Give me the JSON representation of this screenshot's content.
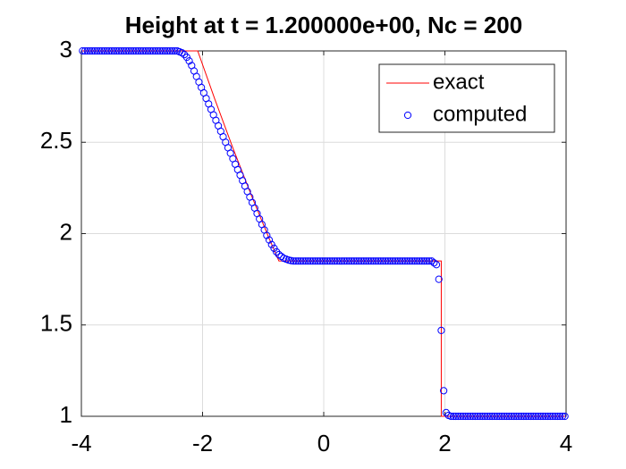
{
  "chart_data": {
    "type": "line",
    "title": "Height at t = 1.200000e+00, Nc = 200",
    "xlim": [
      -4,
      4
    ],
    "ylim": [
      1,
      3
    ],
    "xticks": [
      -4,
      -2,
      0,
      2,
      4
    ],
    "yticks": [
      1,
      1.5,
      2,
      2.5,
      3
    ],
    "grid": true,
    "legend": "northeast",
    "series": [
      {
        "name": "exact",
        "color": "#ff0000",
        "line_style": "-",
        "x": [
          -4,
          -2.08,
          -1.8,
          -1.5,
          -1.2,
          -0.9,
          -0.74,
          1.94,
          1.94,
          4
        ],
        "values": [
          3,
          3,
          2.738,
          2.469,
          2.214,
          1.973,
          1.85,
          1.85,
          1,
          1
        ]
      },
      {
        "name": "computed",
        "color": "#0000ff",
        "marker": "o",
        "x": [
          -3.98,
          -3.94,
          -3.9,
          -3.86,
          -3.82,
          -3.78,
          -3.74,
          -3.7,
          -3.66,
          -3.62,
          -3.58,
          -3.54,
          -3.5,
          -3.46,
          -3.42,
          -3.38,
          -3.34,
          -3.3,
          -3.26,
          -3.22,
          -3.18,
          -3.14,
          -3.1,
          -3.06,
          -3.02,
          -2.98,
          -2.94,
          -2.9,
          -2.86,
          -2.82,
          -2.78,
          -2.74,
          -2.7,
          -2.66,
          -2.62,
          -2.58,
          -2.54,
          -2.5,
          -2.46,
          -2.42,
          -2.38,
          -2.34,
          -2.3,
          -2.26,
          -2.22,
          -2.18,
          -2.14,
          -2.1,
          -2.06,
          -2.02,
          -1.98,
          -1.94,
          -1.9,
          -1.86,
          -1.82,
          -1.78,
          -1.74,
          -1.7,
          -1.66,
          -1.62,
          -1.58,
          -1.54,
          -1.5,
          -1.46,
          -1.42,
          -1.38,
          -1.34,
          -1.3,
          -1.26,
          -1.22,
          -1.18,
          -1.14,
          -1.1,
          -1.06,
          -1.02,
          -0.98,
          -0.94,
          -0.9,
          -0.86,
          -0.82,
          -0.78,
          -0.74,
          -0.7,
          -0.66,
          -0.62,
          -0.58,
          -0.54,
          -0.5,
          -0.46,
          -0.42,
          -0.38,
          -0.34,
          -0.3,
          -0.26,
          -0.22,
          -0.18,
          -0.14,
          -0.1,
          -0.06,
          -0.02,
          0.02,
          0.06,
          0.1,
          0.14,
          0.18,
          0.22,
          0.26,
          0.3,
          0.34,
          0.38,
          0.42,
          0.46,
          0.5,
          0.54,
          0.58,
          0.62,
          0.66,
          0.7,
          0.74,
          0.78,
          0.82,
          0.86,
          0.9,
          0.94,
          0.98,
          1.02,
          1.06,
          1.1,
          1.14,
          1.18,
          1.22,
          1.26,
          1.3,
          1.34,
          1.38,
          1.42,
          1.46,
          1.5,
          1.54,
          1.58,
          1.62,
          1.66,
          1.7,
          1.74,
          1.78,
          1.82,
          1.86,
          1.9,
          1.94,
          1.98,
          2.02,
          2.06,
          2.1,
          2.14,
          2.18,
          2.22,
          2.26,
          2.3,
          2.34,
          2.38,
          2.42,
          2.46,
          2.5,
          2.54,
          2.58,
          2.62,
          2.66,
          2.7,
          2.74,
          2.78,
          2.82,
          2.86,
          2.9,
          2.94,
          2.98,
          3.02,
          3.06,
          3.1,
          3.14,
          3.18,
          3.22,
          3.26,
          3.3,
          3.34,
          3.38,
          3.42,
          3.46,
          3.5,
          3.54,
          3.58,
          3.62,
          3.66,
          3.7,
          3.74,
          3.78,
          3.82,
          3.86,
          3.9,
          3.94,
          3.98
        ],
        "values": [
          3,
          3,
          3,
          3,
          3,
          3,
          3,
          3,
          3,
          3,
          3,
          3,
          3,
          3,
          3,
          3,
          3,
          3,
          3,
          3,
          3,
          3,
          3,
          3,
          3,
          3,
          3,
          3,
          3,
          3,
          3,
          3,
          3,
          3,
          3,
          3,
          3,
          3,
          3,
          3,
          2.995,
          2.99,
          2.98,
          2.965,
          2.945,
          2.92,
          2.89,
          2.86,
          2.83,
          2.8,
          2.77,
          2.74,
          2.71,
          2.68,
          2.65,
          2.62,
          2.59,
          2.56,
          2.53,
          2.5,
          2.47,
          2.44,
          2.41,
          2.38,
          2.35,
          2.32,
          2.29,
          2.26,
          2.23,
          2.2,
          2.17,
          2.14,
          2.11,
          2.08,
          2.05,
          2.02,
          1.99,
          1.965,
          1.94,
          1.92,
          1.9,
          1.885,
          1.875,
          1.865,
          1.86,
          1.855,
          1.852,
          1.85,
          1.85,
          1.85,
          1.85,
          1.85,
          1.85,
          1.85,
          1.85,
          1.85,
          1.85,
          1.85,
          1.85,
          1.85,
          1.85,
          1.85,
          1.85,
          1.85,
          1.85,
          1.85,
          1.85,
          1.85,
          1.85,
          1.85,
          1.85,
          1.85,
          1.85,
          1.85,
          1.85,
          1.85,
          1.85,
          1.85,
          1.85,
          1.85,
          1.85,
          1.85,
          1.85,
          1.85,
          1.85,
          1.85,
          1.85,
          1.85,
          1.85,
          1.85,
          1.85,
          1.85,
          1.85,
          1.85,
          1.85,
          1.85,
          1.85,
          1.85,
          1.85,
          1.85,
          1.85,
          1.85,
          1.85,
          1.85,
          1.85,
          1.84,
          1.83,
          1.75,
          1.47,
          1.14,
          1.02,
          1.005,
          1,
          1,
          1,
          1,
          1,
          1,
          1,
          1,
          1,
          1,
          1,
          1,
          1,
          1,
          1,
          1,
          1,
          1,
          1,
          1,
          1,
          1,
          1,
          1,
          1,
          1,
          1,
          1,
          1,
          1,
          1,
          1,
          1,
          1,
          1,
          1,
          1,
          1,
          1,
          1,
          1,
          1,
          1,
          1,
          1,
          1,
          1,
          1
        ]
      }
    ]
  }
}
